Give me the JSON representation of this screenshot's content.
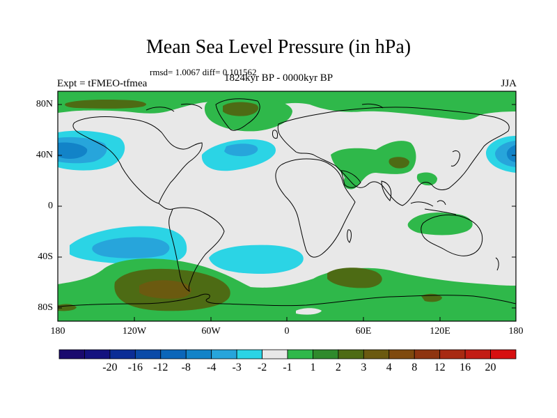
{
  "title": "Mean Sea Level Pressure (in hPa)",
  "stats": "rmsd= 1.0067 diff= 0.101562",
  "experiment": "Expt = tFMEO-tfmea",
  "period": "1824kyr BP - 0000kyr BP",
  "season": "JJA",
  "lat_labels": [
    "80N",
    "40N",
    "0",
    "40S",
    "80S"
  ],
  "lon_labels": [
    "180",
    "120W",
    "60W",
    "0",
    "60E",
    "120E",
    "180"
  ],
  "colorbar": {
    "colors": [
      "#1a0a6e",
      "#14127f",
      "#0b2d96",
      "#0a4aa8",
      "#0b66b9",
      "#1283c8",
      "#27a5db",
      "#2bd4e5",
      "#e8e8e8",
      "#2fb84a",
      "#2f8a2c",
      "#4d6b14",
      "#6b5a10",
      "#7f4a0e",
      "#8e3510",
      "#a82a12",
      "#c21c14",
      "#d70f10"
    ],
    "labels": [
      "-20",
      "-16",
      "-12",
      "-8",
      "-4",
      "-3",
      "-2",
      "-1",
      "1",
      "2",
      "3",
      "4",
      "8",
      "12",
      "16",
      "20"
    ]
  },
  "map_colors": {
    "ocean_neutral": "#e8e8e8",
    "light_cyan": "#2bd4e5",
    "med_blue": "#27a5db",
    "deep_blue": "#1283c8",
    "green": "#2fb84a",
    "dark_green": "#4d6b14",
    "brown": "#6b5a10"
  }
}
